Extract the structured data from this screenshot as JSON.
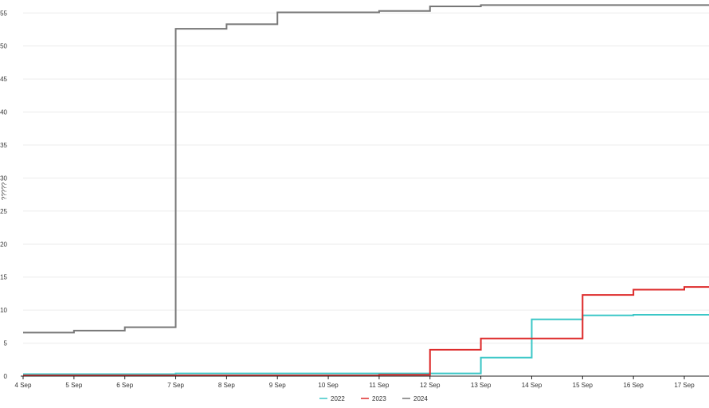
{
  "chart_data": {
    "type": "line",
    "step": true,
    "x": [
      "4 Sep",
      "5 Sep",
      "6 Sep",
      "7 Sep",
      "8 Sep",
      "9 Sep",
      "10 Sep",
      "11 Sep",
      "12 Sep",
      "13 Sep",
      "14 Sep",
      "15 Sep",
      "16 Sep",
      "17 Sep"
    ],
    "ylabel": "?????",
    "ylim": [
      0,
      56
    ],
    "yticks": [
      "0",
      "5",
      "10",
      "15",
      "20",
      "25",
      "30",
      "35",
      "40",
      "45",
      "50",
      "55"
    ],
    "grid": true,
    "legend_position": "bottom-center",
    "series": [
      {
        "name": "2022",
        "color": "#3cc7c7",
        "values": [
          0.3,
          0.3,
          0.3,
          0.4,
          0.4,
          0.4,
          0.4,
          0.4,
          0.4,
          2.8,
          8.6,
          9.2,
          9.3,
          9.3
        ]
      },
      {
        "name": "2023",
        "color": "#dd2a2a",
        "values": [
          0.1,
          0.1,
          0.1,
          0.1,
          0.1,
          0.1,
          0.1,
          0.2,
          4.0,
          5.7,
          5.7,
          12.3,
          13.1,
          13.5
        ]
      },
      {
        "name": "2024",
        "color": "#777777",
        "values": [
          6.6,
          6.9,
          7.4,
          52.6,
          53.3,
          55.1,
          55.1,
          55.3,
          56.0,
          56.2,
          56.2,
          56.2,
          56.2,
          56.2
        ]
      }
    ]
  }
}
